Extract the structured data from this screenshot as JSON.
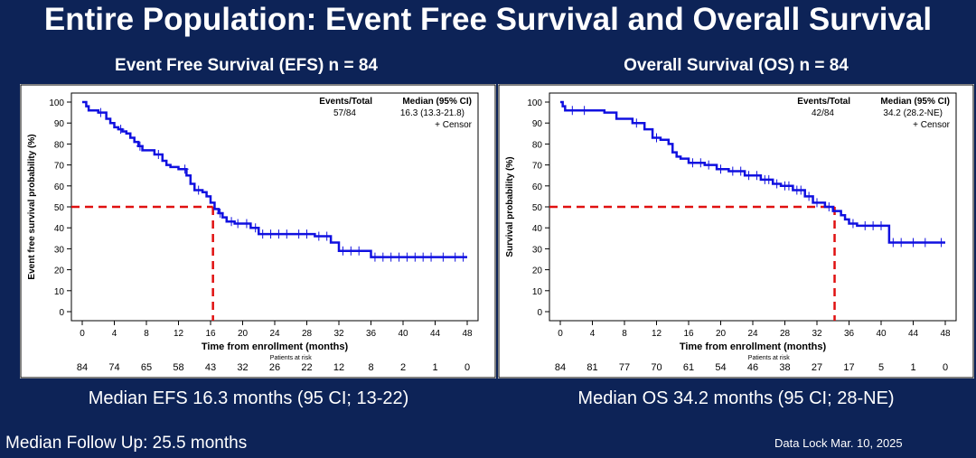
{
  "slide": {
    "title": "Entire Population: Event Free Survival and Overall Survival",
    "followup": "Median Follow Up: 25.5 months",
    "datalock": "Data Lock Mar. 10, 2025"
  },
  "chart_data": [
    {
      "type": "line",
      "title": "Event Free Survival (EFS) n = 84",
      "xlabel": "Time from enrollment (months)",
      "ylabel": "Event free survival probability (%)",
      "xlim": [
        0,
        48
      ],
      "ylim": [
        0,
        100
      ],
      "xticks": [
        0,
        4,
        8,
        12,
        16,
        20,
        24,
        28,
        32,
        36,
        40,
        44,
        48
      ],
      "yticks": [
        0,
        10,
        20,
        30,
        40,
        50,
        60,
        70,
        80,
        90,
        100
      ],
      "legend": {
        "header_events": "Events/Total",
        "header_median": "Median (95% CI)",
        "events": "57/84",
        "median": "16.3 (13.3-21.8)",
        "censor": "+ Censor"
      },
      "median_value": 16.3,
      "risk_label": "Patients at risk",
      "at_risk": [
        84,
        74,
        65,
        58,
        43,
        32,
        26,
        22,
        12,
        8,
        2,
        1,
        0
      ],
      "series": [
        {
          "color": "#1010e0",
          "x": [
            0,
            0.5,
            0.8,
            2,
            3,
            3.5,
            4,
            4.5,
            5,
            5.5,
            6,
            6.5,
            7,
            7.5,
            9,
            10,
            10.5,
            11,
            12,
            13,
            13.5,
            14,
            15,
            15.5,
            16,
            16.5,
            17,
            17.5,
            18,
            19,
            21,
            22,
            29,
            31,
            32,
            36,
            48
          ],
          "y": [
            100,
            98,
            96,
            95,
            92,
            90,
            88,
            87,
            86,
            85,
            83,
            81,
            79,
            77,
            75,
            72,
            70,
            69,
            68,
            65,
            61,
            58,
            57,
            55,
            52,
            49,
            47,
            45,
            43,
            42,
            40,
            37,
            36,
            33,
            29,
            26,
            26
          ]
        }
      ],
      "censor_x": [
        2.3,
        4.8,
        7.2,
        9.5,
        12.8,
        14.5,
        17.2,
        18.6,
        19.4,
        20.5,
        21.6,
        22.5,
        23.5,
        24.5,
        25.5,
        27,
        28,
        29.5,
        30.5,
        32.5,
        33.5,
        34.5,
        36.5,
        37.5,
        38.5,
        39.5,
        40.5,
        41.5,
        42.5,
        43.5,
        45,
        46.5,
        47.5
      ],
      "caption": "Median EFS 16.3 months (95 CI; 13-22)"
    },
    {
      "type": "line",
      "title": "Overall Survival (OS) n = 84",
      "xlabel": "Time from enrollment (months)",
      "ylabel": "Survival probability (%)",
      "xlim": [
        0,
        48
      ],
      "ylim": [
        0,
        100
      ],
      "xticks": [
        0,
        4,
        8,
        12,
        16,
        20,
        24,
        28,
        32,
        36,
        40,
        44,
        48
      ],
      "yticks": [
        0,
        10,
        20,
        30,
        40,
        50,
        60,
        70,
        80,
        90,
        100
      ],
      "legend": {
        "header_events": "Events/Total",
        "header_median": "Median (95% CI)",
        "events": "42/84",
        "median": "34.2 (28.2-NE)",
        "censor": "+ Censor"
      },
      "median_value": 34.2,
      "risk_label": "Patients at risk",
      "at_risk": [
        84,
        81,
        77,
        70,
        61,
        54,
        46,
        38,
        27,
        17,
        5,
        1,
        0
      ],
      "series": [
        {
          "color": "#1010e0",
          "x": [
            0,
            0.3,
            0.6,
            5.5,
            7,
            9,
            10.5,
            11.5,
            12.5,
            13.5,
            14,
            14.5,
            15,
            16,
            18,
            19.5,
            21,
            23,
            25,
            26.5,
            27.5,
            29,
            30.5,
            31.5,
            33,
            34,
            35,
            35.5,
            36,
            37,
            41,
            48
          ],
          "y": [
            100,
            98,
            96,
            95,
            92,
            90,
            87,
            83,
            82,
            80,
            76,
            74,
            73,
            71,
            70,
            68,
            67,
            65,
            63,
            61,
            60,
            58,
            55,
            52,
            50,
            48,
            46,
            44,
            42,
            41,
            33,
            33
          ]
        }
      ],
      "censor_x": [
        1.5,
        3,
        9.5,
        12,
        16.5,
        17.5,
        18.5,
        20,
        21.5,
        22.5,
        23.5,
        24.5,
        25.5,
        26,
        27,
        28,
        28.5,
        29.5,
        30,
        31,
        32,
        33.5,
        36.5,
        38,
        39,
        40,
        41.5,
        42.5,
        44,
        45.5,
        47.5
      ],
      "caption": "Median OS 34.2 months (95 CI; 28-NE)"
    }
  ]
}
